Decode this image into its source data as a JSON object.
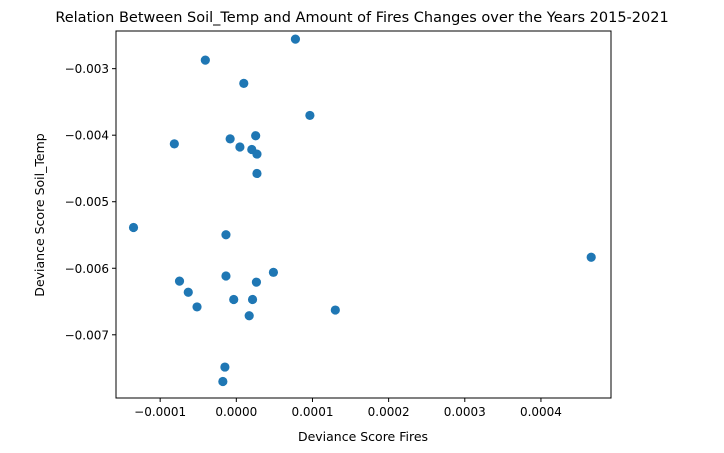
{
  "chart_data": {
    "type": "scatter",
    "title": "Relation Between Soil_Temp and Amount of Fires Changes over the Years 2015-2021",
    "xlabel": "Deviance Score Fires",
    "ylabel": "Deviance Score Soil_Temp",
    "xlim": [
      -0.000158,
      0.000492
    ],
    "ylim": [
      -0.00795,
      -0.002434
    ],
    "xticks": [
      -0.0001,
      0.0,
      0.0001,
      0.0002,
      0.0003,
      0.0004
    ],
    "xtick_labels": [
      "−0.0001",
      "0.0000",
      "0.0001",
      "0.0002",
      "0.0003",
      "0.0004"
    ],
    "yticks": [
      -0.003,
      -0.004,
      -0.005,
      -0.006,
      -0.007
    ],
    "ytick_labels": [
      "−0.003",
      "−0.004",
      "−0.005",
      "−0.006",
      "−0.007"
    ],
    "grid": false,
    "marker_color": "#1f77b4",
    "points": [
      {
        "x": 7.76e-05,
        "y": -0.002556
      },
      {
        "x": -4.07e-05,
        "y": -0.002872
      },
      {
        "x": 9.8e-06,
        "y": -0.003221
      },
      {
        "x": 9.66e-05,
        "y": -0.003703
      },
      {
        "x": 2.54e-05,
        "y": -0.004008
      },
      {
        "x": -8.1e-06,
        "y": -0.004055
      },
      {
        "x": -8.14e-05,
        "y": -0.004131
      },
      {
        "x": 4.7e-06,
        "y": -0.004177
      },
      {
        "x": 2.03e-05,
        "y": -0.004215
      },
      {
        "x": 2.71e-05,
        "y": -0.004284
      },
      {
        "x": 2.71e-05,
        "y": -0.004575
      },
      {
        "x": -0.000135,
        "y": -0.005387
      },
      {
        "x": -1.36e-05,
        "y": -0.005496
      },
      {
        "x": 0.000466,
        "y": -0.005834
      },
      {
        "x": 4.87e-05,
        "y": -0.006061
      },
      {
        "x": -1.36e-05,
        "y": -0.006116
      },
      {
        "x": -7.46e-05,
        "y": -0.006193
      },
      {
        "x": 2.64e-05,
        "y": -0.006209
      },
      {
        "x": -6.31e-05,
        "y": -0.006361
      },
      {
        "x": -3.4e-06,
        "y": -0.006469
      },
      {
        "x": 2.13e-05,
        "y": -0.006469
      },
      {
        "x": -5.16e-05,
        "y": -0.006581
      },
      {
        "x": 0.00013,
        "y": -0.006628
      },
      {
        "x": 1.69e-05,
        "y": -0.006714
      },
      {
        "x": -1.5e-05,
        "y": -0.007485
      },
      {
        "x": -1.77e-05,
        "y": -0.007702
      }
    ]
  }
}
